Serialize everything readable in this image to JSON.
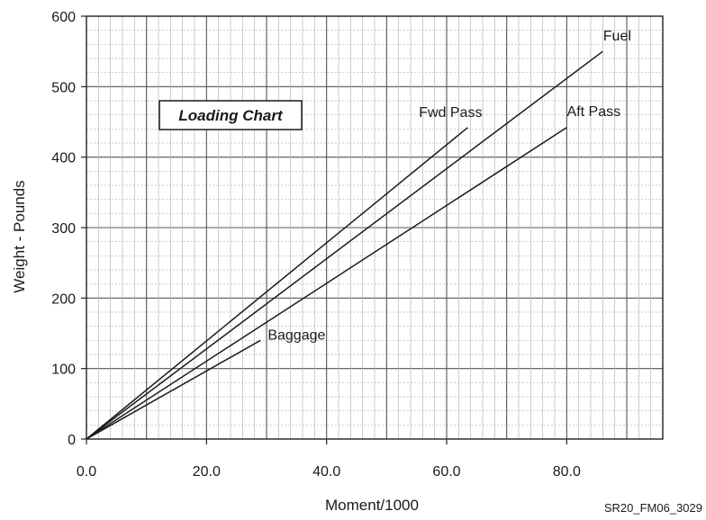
{
  "chart_data": {
    "type": "line",
    "title": "Loading Chart",
    "xlabel": "Moment/1000",
    "ylabel": "Weight - Pounds",
    "xlim": [
      0,
      96
    ],
    "ylim": [
      0,
      600
    ],
    "x_ticks": [
      "0.0",
      "20.0",
      "40.0",
      "60.0",
      "80.0"
    ],
    "y_ticks": [
      "0",
      "100",
      "200",
      "300",
      "400",
      "500",
      "600"
    ],
    "grid": true,
    "series": [
      {
        "name": "Fwd Pass",
        "x": [
          0,
          63.5
        ],
        "y": [
          0,
          442
        ]
      },
      {
        "name": "Fuel",
        "x": [
          0,
          86
        ],
        "y": [
          0,
          550
        ]
      },
      {
        "name": "Aft Pass",
        "x": [
          0,
          80
        ],
        "y": [
          0,
          442
        ]
      },
      {
        "name": "Baggage",
        "x": [
          0,
          29
        ],
        "y": [
          0,
          140
        ]
      }
    ]
  },
  "credit": "SR20_FM06_3029"
}
